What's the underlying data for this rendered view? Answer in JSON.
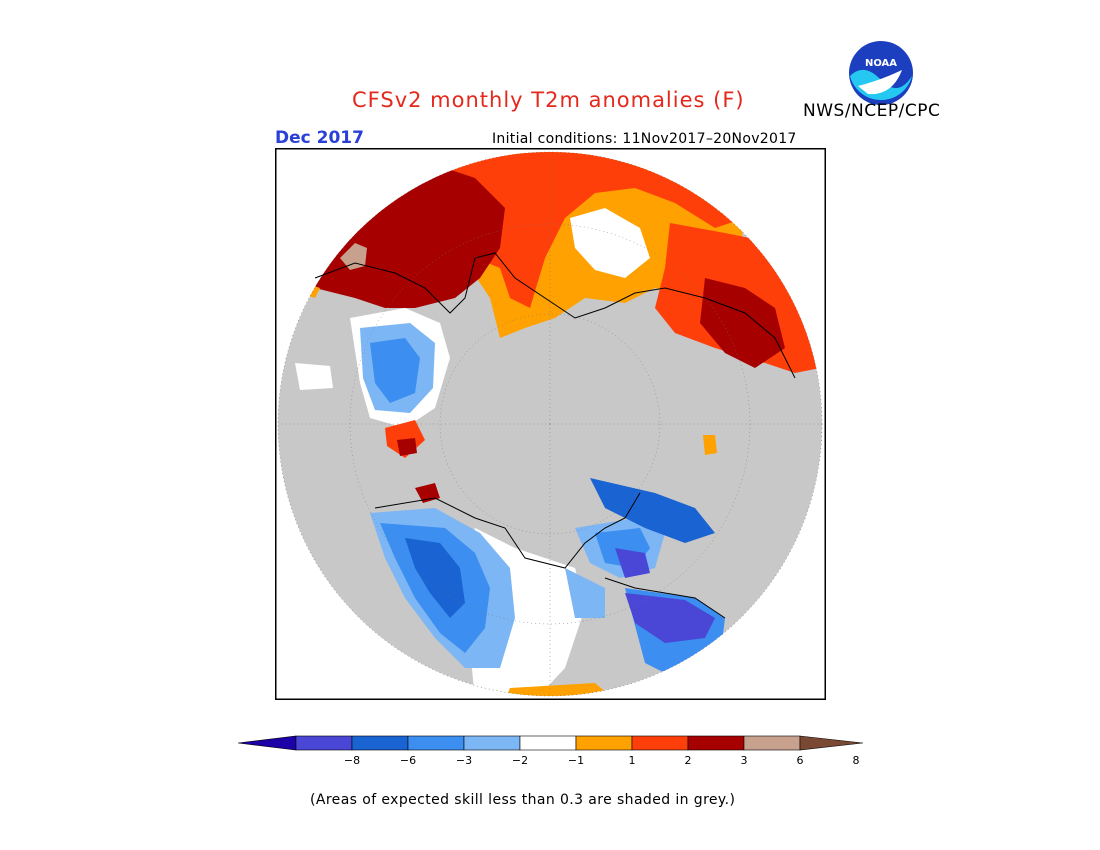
{
  "header": {
    "title": "CFSv2 monthly T2m anomalies (F)",
    "agency": "NWS/NCEP/CPC",
    "logo_text": "NOAA",
    "month": "Dec 2017",
    "initial_conditions": "Initial conditions: 11Nov2017–20Nov2017"
  },
  "legend": {
    "ticks": [
      "−8",
      "−6",
      "−3",
      "−2",
      "−1",
      "1",
      "2",
      "3",
      "6",
      "8"
    ],
    "colors": [
      "#1c00a8",
      "#4a46d6",
      "#1a63d2",
      "#3c8ef0",
      "#7cb6f4",
      "#ffffff",
      "#ffa100",
      "#ff3f0a",
      "#a60000",
      "#c8a08e",
      "#7a4934"
    ],
    "low_color": "#1c00a8",
    "high_color": "#7a4934"
  },
  "map": {
    "projection": "north polar stereographic",
    "skill_shade_color": "#c8c8c8"
  },
  "footnote": "(Areas of expected skill less than 0.3 are shaded in grey.)"
}
